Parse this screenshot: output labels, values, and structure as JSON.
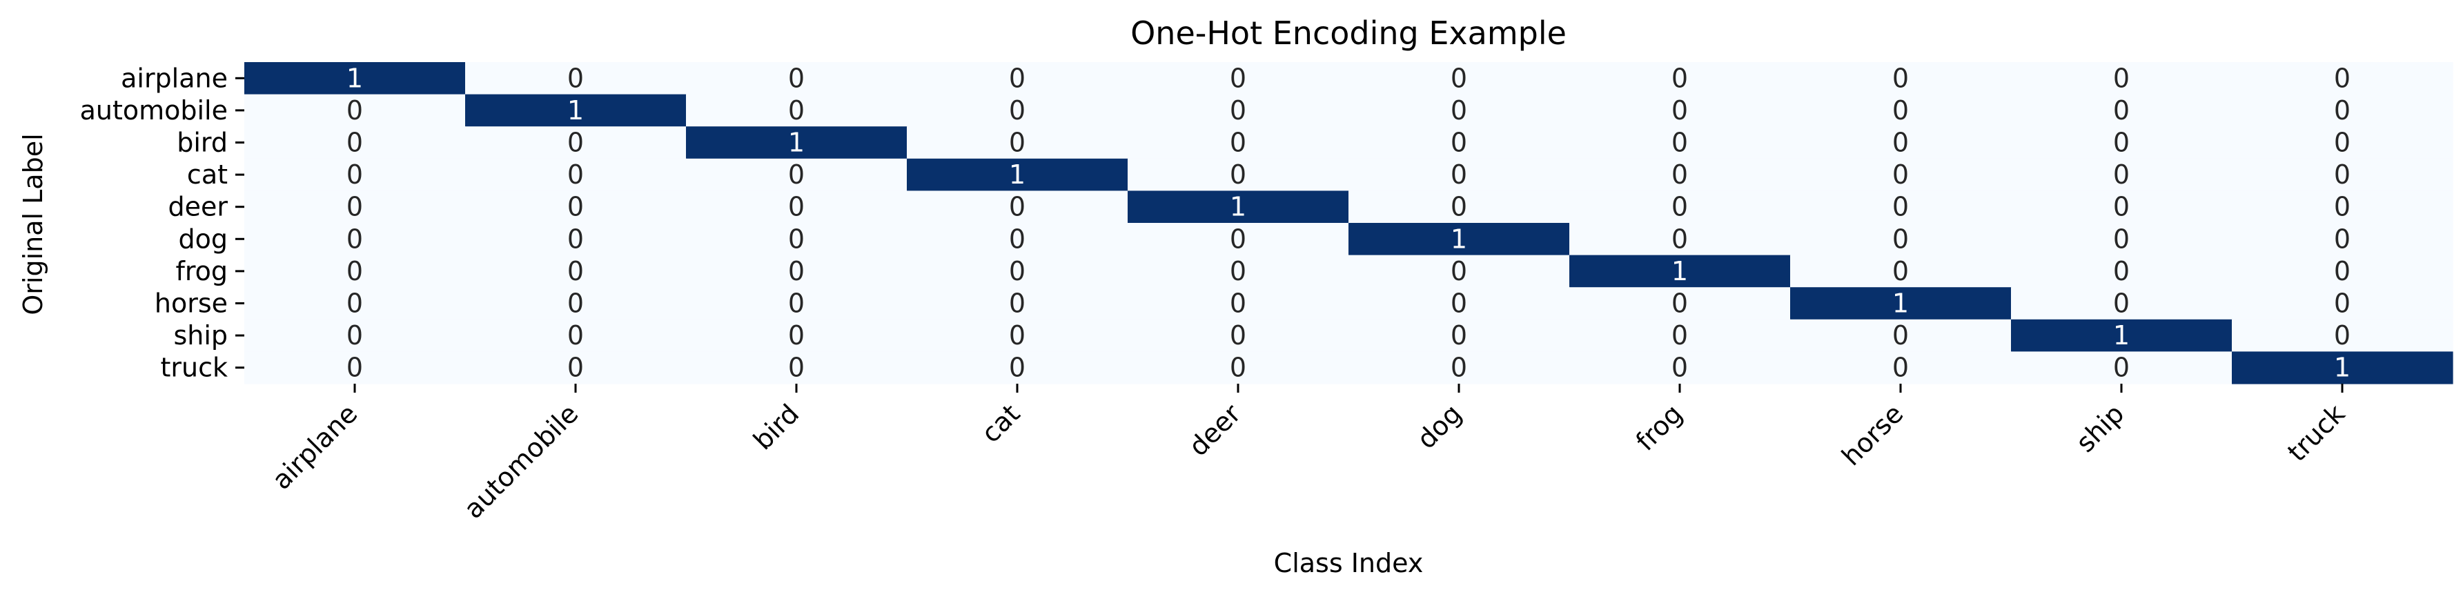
{
  "chart_data": {
    "type": "heatmap",
    "title": "One-Hot Encoding Example",
    "xlabel": "Class Index",
    "ylabel": "Original Label",
    "x_categories": [
      "airplane",
      "automobile",
      "bird",
      "cat",
      "deer",
      "dog",
      "frog",
      "horse",
      "ship",
      "truck"
    ],
    "y_categories": [
      "airplane",
      "automobile",
      "bird",
      "cat",
      "deer",
      "dog",
      "frog",
      "horse",
      "ship",
      "truck"
    ],
    "values": [
      [
        1,
        0,
        0,
        0,
        0,
        0,
        0,
        0,
        0,
        0
      ],
      [
        0,
        1,
        0,
        0,
        0,
        0,
        0,
        0,
        0,
        0
      ],
      [
        0,
        0,
        1,
        0,
        0,
        0,
        0,
        0,
        0,
        0
      ],
      [
        0,
        0,
        0,
        1,
        0,
        0,
        0,
        0,
        0,
        0
      ],
      [
        0,
        0,
        0,
        0,
        1,
        0,
        0,
        0,
        0,
        0
      ],
      [
        0,
        0,
        0,
        0,
        0,
        1,
        0,
        0,
        0,
        0
      ],
      [
        0,
        0,
        0,
        0,
        0,
        0,
        1,
        0,
        0,
        0
      ],
      [
        0,
        0,
        0,
        0,
        0,
        0,
        0,
        1,
        0,
        0
      ],
      [
        0,
        0,
        0,
        0,
        0,
        0,
        0,
        0,
        1,
        0
      ],
      [
        0,
        0,
        0,
        0,
        0,
        0,
        0,
        0,
        0,
        1
      ]
    ],
    "value_range": [
      0,
      1
    ],
    "annotated": true,
    "colorbar": false,
    "colors": {
      "low": "#f7fbff",
      "high": "#08306b",
      "text_on_low": "#262626",
      "text_on_high": "#ffffff"
    }
  }
}
